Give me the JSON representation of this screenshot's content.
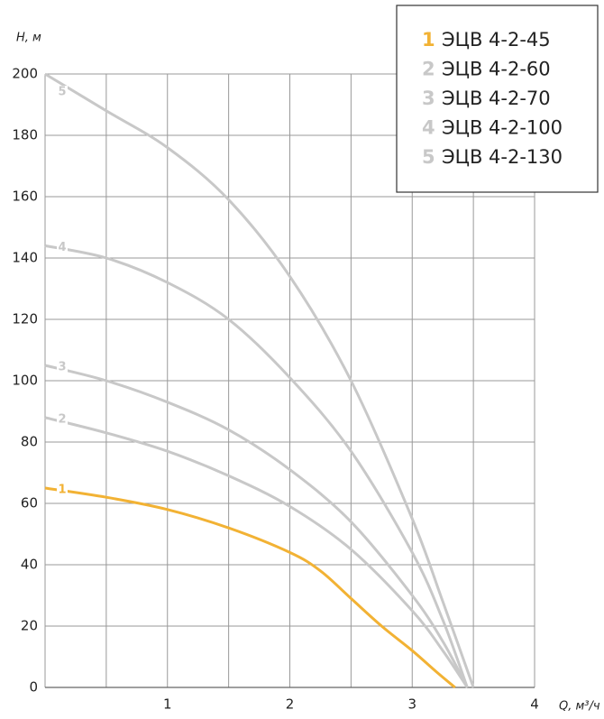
{
  "chart_data": {
    "type": "line",
    "xlabel": "Q, м³/ч",
    "ylabel": "H, м",
    "xlim": [
      0,
      4
    ],
    "ylim": [
      0,
      200
    ],
    "xticks": [
      1,
      2,
      3,
      4
    ],
    "xminor": [
      0.5,
      1.5,
      2.5,
      3.5
    ],
    "yticks": [
      0,
      20,
      40,
      60,
      80,
      100,
      120,
      140,
      160,
      180,
      200
    ],
    "grid": true,
    "legend": "upper right",
    "series": [
      {
        "label": "1",
        "name": "ЭЦВ 4-2-45",
        "color": "#f2b234",
        "x": [
          0,
          0.5,
          1,
          1.5,
          2,
          2.25,
          2.5,
          2.75,
          3,
          3.2,
          3.35
        ],
        "values": [
          65,
          62,
          58,
          52,
          44,
          38,
          29,
          20,
          12,
          5,
          0
        ]
      },
      {
        "label": "2",
        "name": "ЭЦВ 4-2-60",
        "color": "#c8c8c8",
        "x": [
          0,
          0.5,
          1,
          1.5,
          2,
          2.5,
          3,
          3.25,
          3.45
        ],
        "values": [
          88,
          83,
          77,
          69,
          59,
          45,
          25,
          12,
          0
        ]
      },
      {
        "label": "3",
        "name": "ЭЦВ 4-2-70",
        "color": "#c8c8c8",
        "x": [
          0,
          0.5,
          1,
          1.5,
          2,
          2.5,
          3,
          3.25,
          3.45
        ],
        "values": [
          105,
          100,
          93,
          84,
          71,
          54,
          30,
          15,
          0
        ]
      },
      {
        "label": "4",
        "name": "ЭЦВ 4-2-100",
        "color": "#c8c8c8",
        "x": [
          0,
          0.5,
          1,
          1.5,
          2,
          2.5,
          3,
          3.25,
          3.45
        ],
        "values": [
          144,
          140,
          132,
          120,
          101,
          77,
          44,
          22,
          0
        ]
      },
      {
        "label": "5",
        "name": "ЭЦВ 4-2-130",
        "color": "#c8c8c8",
        "x": [
          0,
          0.5,
          1,
          1.5,
          2,
          2.5,
          3,
          3.25,
          3.5
        ],
        "values": [
          200,
          188,
          176,
          159,
          134,
          100,
          55,
          28,
          0
        ]
      }
    ]
  }
}
